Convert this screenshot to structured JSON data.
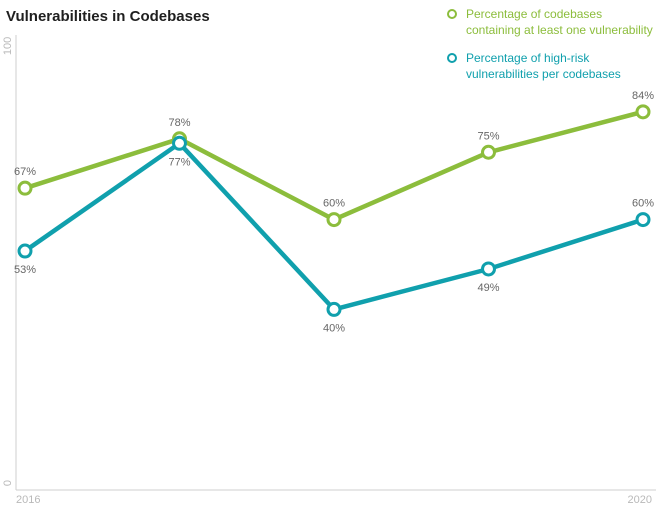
{
  "chart_data": {
    "type": "line",
    "title": "Vulnerabilities in Codebases",
    "x": [
      "2016",
      "2017",
      "2018",
      "2019",
      "2020"
    ],
    "x_tick_labels": [
      "2016",
      "2020"
    ],
    "ylim": [
      0,
      100
    ],
    "y_tick_labels": [
      "0",
      "100"
    ],
    "grid": false,
    "legend_position": "top-right",
    "series": [
      {
        "name": "Percentage of codebases containing at least one vulnerability",
        "values": [
          67,
          78,
          60,
          75,
          84
        ],
        "labels": [
          "67%",
          "78%",
          "60%",
          "75%",
          "84%"
        ],
        "label_position": [
          "above",
          "above",
          "above",
          "above",
          "above"
        ],
        "color": "#8cbd3c"
      },
      {
        "name": "Percentage of high-risk vulnerabilities per codebases",
        "values": [
          53,
          77,
          40,
          49,
          60
        ],
        "labels": [
          "53%",
          "77%",
          "40%",
          "49%",
          "60%"
        ],
        "label_position": [
          "below",
          "below",
          "below",
          "below",
          "above"
        ],
        "color": "#10a0ad"
      }
    ]
  }
}
